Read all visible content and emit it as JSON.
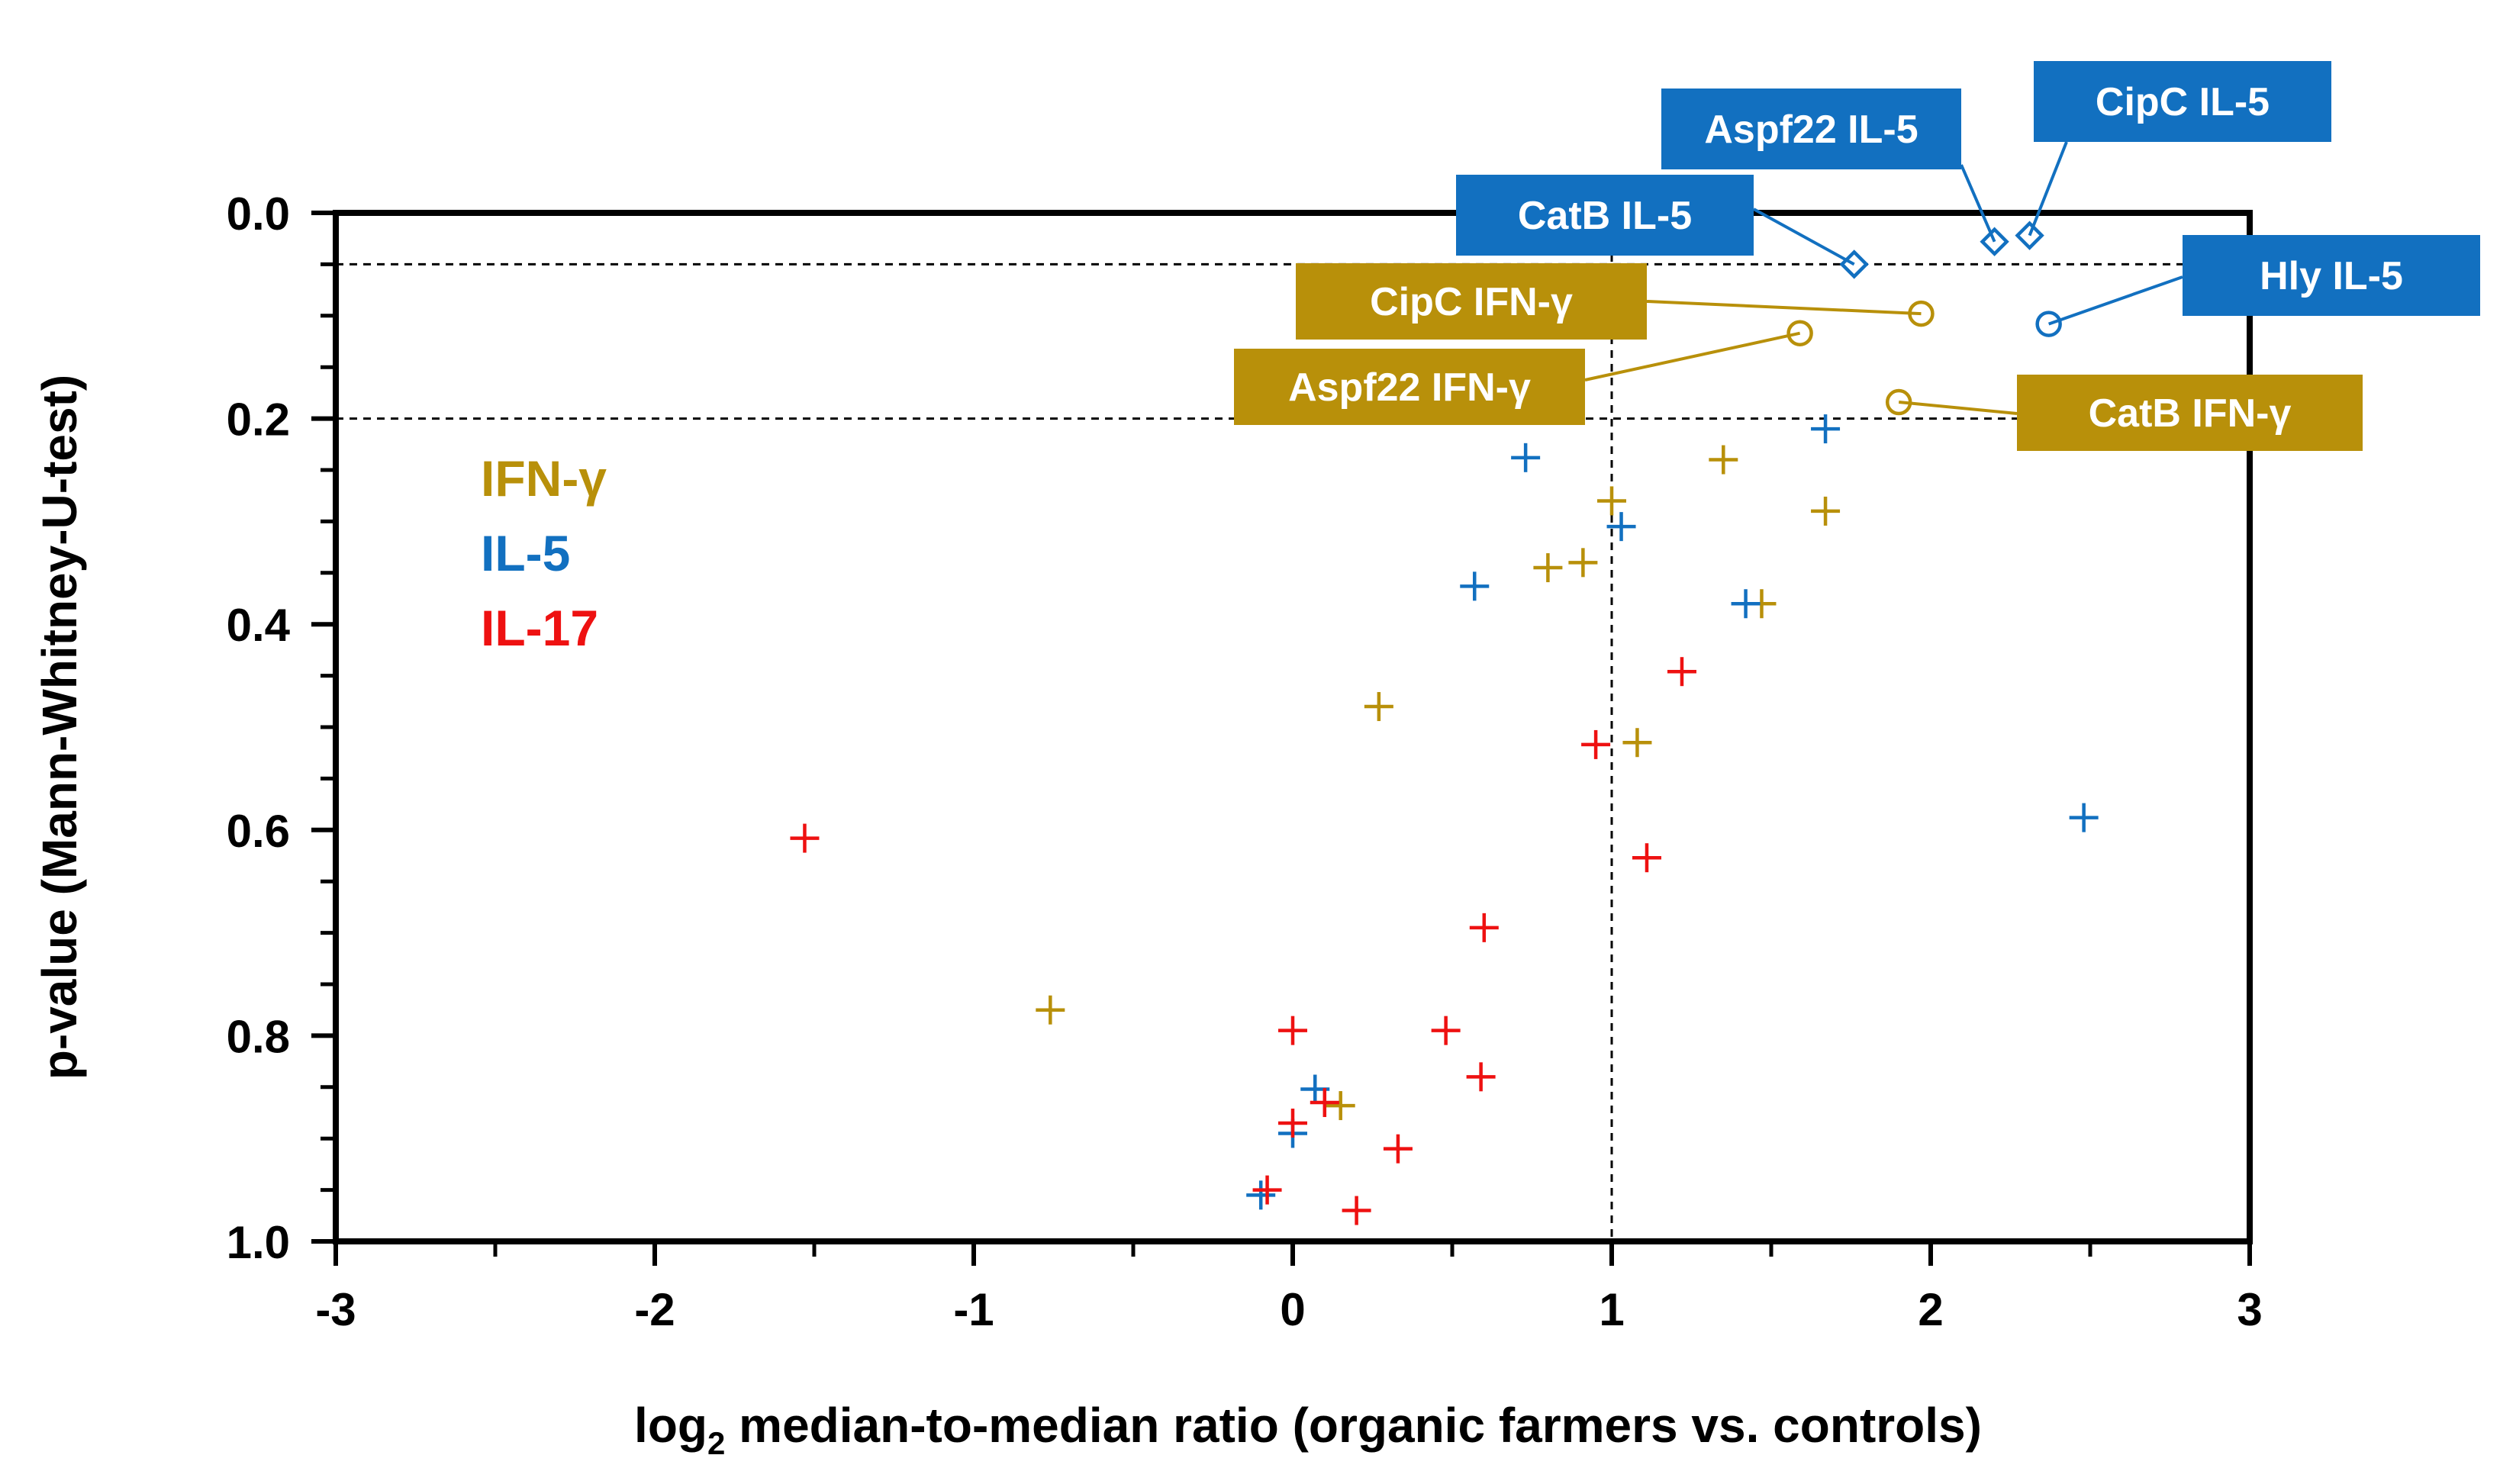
{
  "chart_data": {
    "type": "scatter",
    "title": "",
    "xlabel": "log",
    "xlabel_subscript": "2",
    "xlabel_rest": " median-to-median ratio (organic farmers vs. controls)",
    "ylabel": "p-value (Mann-Whitney-U-test)",
    "xlim": [
      -3,
      3
    ],
    "ylim": [
      0.0,
      1.0
    ],
    "y_inverted": true,
    "x_ticks": [
      "-3",
      "-2",
      "-1",
      "0",
      "1",
      "2",
      "3"
    ],
    "y_ticks": [
      "0.0",
      "0.2",
      "0.4",
      "0.6",
      "0.8",
      "1.0"
    ],
    "reference_lines": {
      "vertical_x": 1,
      "horizontal_y": [
        0.05,
        0.2
      ]
    },
    "colors": {
      "IFN-γ": "#B8900A",
      "IL-5": "#1270C0",
      "IL-17": "#EE1111"
    },
    "legend": [
      "IFN-γ",
      "IL-5",
      "IL-17"
    ],
    "series": [
      {
        "name": "IFN-γ",
        "color": "#B8900A",
        "points": [
          {
            "x": 1.35,
            "y": 0.24
          },
          {
            "x": 1.0,
            "y": 0.28
          },
          {
            "x": 1.67,
            "y": 0.29
          },
          {
            "x": 0.8,
            "y": 0.345
          },
          {
            "x": 0.91,
            "y": 0.34
          },
          {
            "x": 1.47,
            "y": 0.38
          },
          {
            "x": 0.27,
            "y": 0.48
          },
          {
            "x": 1.08,
            "y": 0.515
          },
          {
            "x": -0.76,
            "y": 0.775
          },
          {
            "x": 0.15,
            "y": 0.868
          }
        ],
        "highlighted": [
          {
            "x": 1.97,
            "y": 0.098,
            "label": "CipC IFN-γ"
          },
          {
            "x": 1.59,
            "y": 0.117,
            "label": "Aspf22 IFN-γ"
          },
          {
            "x": 1.9,
            "y": 0.184,
            "label": "CatB IFN-γ"
          }
        ]
      },
      {
        "name": "IL-5",
        "color": "#1270C0",
        "points": [
          {
            "x": 1.67,
            "y": 0.21
          },
          {
            "x": 0.73,
            "y": 0.238
          },
          {
            "x": 1.03,
            "y": 0.305
          },
          {
            "x": 0.57,
            "y": 0.363
          },
          {
            "x": 1.42,
            "y": 0.38
          },
          {
            "x": 2.48,
            "y": 0.588
          },
          {
            "x": 0.07,
            "y": 0.852
          },
          {
            "x": 0.0,
            "y": 0.895
          },
          {
            "x": -0.1,
            "y": 0.955
          }
        ],
        "highlighted": [
          {
            "x": 2.2,
            "y": 0.028,
            "label": "Aspf22 IL-5",
            "marker": "diamond"
          },
          {
            "x": 2.31,
            "y": 0.022,
            "label": "CipC IL-5",
            "marker": "diamond"
          },
          {
            "x": 1.76,
            "y": 0.05,
            "label": "CatB IL-5",
            "marker": "diamond"
          },
          {
            "x": 2.37,
            "y": 0.108,
            "label": "Hly IL-5",
            "marker": "circle"
          }
        ]
      },
      {
        "name": "IL-17",
        "color": "#EE1111",
        "points": [
          {
            "x": 1.22,
            "y": 0.446
          },
          {
            "x": 0.95,
            "y": 0.517
          },
          {
            "x": -1.53,
            "y": 0.608
          },
          {
            "x": 1.11,
            "y": 0.627
          },
          {
            "x": 0.6,
            "y": 0.695
          },
          {
            "x": 0.0,
            "y": 0.795
          },
          {
            "x": 0.48,
            "y": 0.795
          },
          {
            "x": 0.59,
            "y": 0.84
          },
          {
            "x": 0.1,
            "y": 0.865
          },
          {
            "x": 0.0,
            "y": 0.885
          },
          {
            "x": 0.33,
            "y": 0.91
          },
          {
            "x": -0.08,
            "y": 0.95
          },
          {
            "x": 0.2,
            "y": 0.97
          }
        ]
      }
    ]
  }
}
